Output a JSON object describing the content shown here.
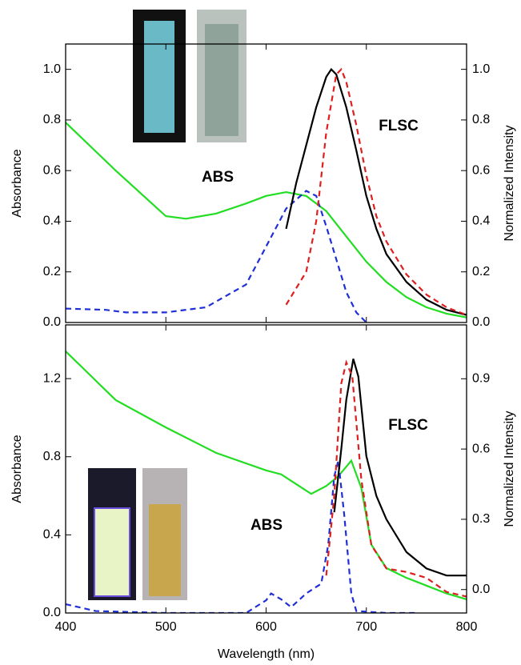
{
  "chart_data": [
    {
      "type": "line",
      "ylabel": "Absorbance",
      "y2label": "Normalized Intensity",
      "annotations": [
        "ABS",
        "FLSC"
      ],
      "xlim": [
        400,
        800
      ],
      "xticks": [
        400,
        500,
        600,
        700,
        800
      ],
      "ylim": [
        0,
        1.1
      ],
      "yticks": [
        {
          "value": 0,
          "label": "0.0"
        },
        {
          "value": 0.2,
          "label": "0.2"
        },
        {
          "value": 0.4,
          "label": "0.4"
        },
        {
          "value": 0.6,
          "label": "0.6"
        },
        {
          "value": 0.8,
          "label": "0.8"
        },
        {
          "value": 1,
          "label": "1.0"
        }
      ],
      "y2lim": [
        0,
        1.1
      ],
      "y2ticks": [
        {
          "value": 0,
          "label": "0.0"
        },
        {
          "value": 0.2,
          "label": "0.2"
        },
        {
          "value": 0.4,
          "label": "0.4"
        },
        {
          "value": 0.6,
          "label": "0.6"
        },
        {
          "value": 0.8,
          "label": "0.8"
        },
        {
          "value": 1,
          "label": "1.0"
        }
      ],
      "series": [
        {
          "color": "#22dd22",
          "style": "solid",
          "x": [
            400,
            450,
            500,
            520,
            550,
            580,
            600,
            620,
            640,
            660,
            680,
            700,
            720,
            740,
            760,
            780,
            800
          ],
          "values": [
            0.79,
            0.6,
            0.42,
            0.41,
            0.43,
            0.47,
            0.5,
            0.515,
            0.5,
            0.44,
            0.34,
            0.24,
            0.16,
            0.1,
            0.06,
            0.035,
            0.02
          ]
        },
        {
          "color": "#1f2fd6",
          "style": "dashed",
          "x": [
            400,
            440,
            460,
            500,
            540,
            580,
            600,
            620,
            640,
            650,
            660,
            670,
            680,
            690,
            700
          ],
          "values": [
            0.055,
            0.05,
            0.04,
            0.04,
            0.06,
            0.15,
            0.3,
            0.45,
            0.52,
            0.5,
            0.38,
            0.25,
            0.12,
            0.04,
            0.0
          ]
        },
        {
          "color": "#000000",
          "style": "solid",
          "axis": "y2",
          "x": [
            620,
            630,
            640,
            650,
            660,
            665,
            670,
            680,
            690,
            700,
            710,
            720,
            740,
            760,
            780,
            800
          ],
          "values": [
            0.37,
            0.55,
            0.7,
            0.85,
            0.97,
            1.0,
            0.98,
            0.85,
            0.68,
            0.5,
            0.37,
            0.27,
            0.16,
            0.09,
            0.05,
            0.03
          ]
        },
        {
          "color": "#dd1f1f",
          "style": "dashed",
          "axis": "y2",
          "x": [
            620,
            640,
            650,
            660,
            670,
            675,
            680,
            690,
            700,
            710,
            720,
            740,
            760,
            780,
            800
          ],
          "values": [
            0.07,
            0.2,
            0.4,
            0.75,
            0.98,
            1.0,
            0.95,
            0.78,
            0.58,
            0.42,
            0.32,
            0.19,
            0.11,
            0.06,
            0.03
          ]
        }
      ]
    },
    {
      "type": "line",
      "ylabel": "Absorbance",
      "y2label": "Normalized Intensity",
      "xlabel": "Wavelength (nm)",
      "annotations": [
        "ABS",
        "FLSC"
      ],
      "xlim": [
        400,
        800
      ],
      "xticks": [
        400,
        500,
        600,
        700,
        800
      ],
      "ylim": [
        0,
        1.475
      ],
      "yticks": [
        {
          "value": 0,
          "label": "0.0"
        },
        {
          "value": 0.4,
          "label": "0.4"
        },
        {
          "value": 0.8,
          "label": "0.8"
        },
        {
          "value": 1.2,
          "label": "1.2"
        }
      ],
      "y2lim": [
        -0.1,
        1.13
      ],
      "y2ticks": [
        {
          "value": 0,
          "label": "0.0"
        },
        {
          "value": 0.3,
          "label": "0.3"
        },
        {
          "value": 0.6,
          "label": "0.6"
        },
        {
          "value": 0.9,
          "label": "0.9"
        }
      ],
      "series": [
        {
          "color": "#22dd22",
          "style": "solid",
          "x": [
            400,
            450,
            500,
            550,
            600,
            615,
            630,
            645,
            660,
            672,
            685,
            695,
            705,
            720,
            740,
            760,
            780,
            800
          ],
          "values": [
            1.34,
            1.09,
            0.95,
            0.82,
            0.73,
            0.71,
            0.66,
            0.61,
            0.65,
            0.7,
            0.78,
            0.64,
            0.35,
            0.23,
            0.18,
            0.14,
            0.1,
            0.07
          ]
        },
        {
          "color": "#1f2fd6",
          "style": "dashed",
          "x": [
            400,
            430,
            500,
            580,
            600,
            605,
            615,
            625,
            640,
            655,
            662,
            668,
            672,
            678,
            685,
            690,
            720,
            750
          ],
          "values": [
            0.045,
            0.01,
            0.0,
            0.0,
            0.065,
            0.1,
            0.07,
            0.03,
            0.1,
            0.15,
            0.35,
            0.7,
            0.78,
            0.5,
            0.1,
            0.01,
            0.0,
            0.0
          ]
        },
        {
          "color": "#000000",
          "style": "solid",
          "axis": "y2",
          "x": [
            668,
            675,
            680,
            687,
            692,
            700,
            710,
            720,
            740,
            760,
            780,
            800
          ],
          "values": [
            0.33,
            0.6,
            0.81,
            0.985,
            0.91,
            0.57,
            0.4,
            0.3,
            0.16,
            0.09,
            0.06,
            0.06
          ]
        },
        {
          "color": "#dd1f1f",
          "style": "dashed",
          "axis": "y2",
          "x": [
            660,
            668,
            675,
            680,
            686,
            695,
            705,
            720,
            740,
            760,
            780,
            800
          ],
          "values": [
            0.06,
            0.4,
            0.88,
            0.97,
            0.91,
            0.47,
            0.19,
            0.09,
            0.075,
            0.05,
            -0.01,
            -0.03
          ]
        }
      ]
    }
  ]
}
